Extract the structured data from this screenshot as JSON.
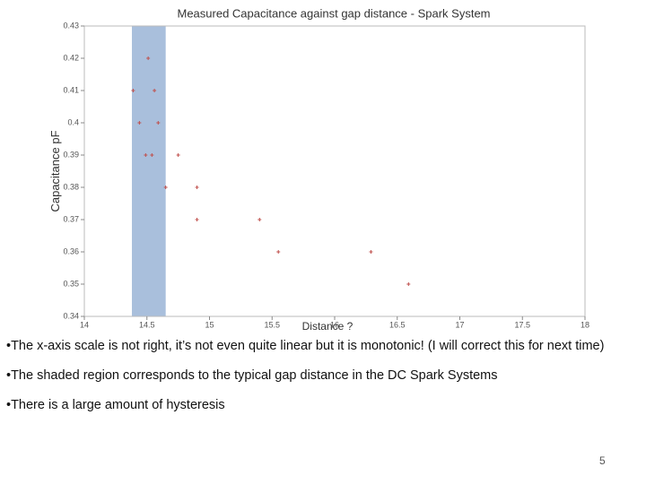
{
  "chart_data": {
    "type": "scatter",
    "title": "Measured Capacitance against gap distance - Spark System",
    "x_label": "Distance ?",
    "y_label": "Capacitance pF",
    "xlim": [
      14,
      18
    ],
    "xticks": [
      14,
      14.5,
      15,
      15.5,
      16,
      16.5,
      17,
      17.5,
      18
    ],
    "ylim": [
      0.34,
      0.43
    ],
    "yticks": [
      0.34,
      0.35,
      0.36,
      0.37,
      0.38,
      0.39,
      0.4,
      0.41,
      0.42,
      0.43
    ],
    "shaded_region": {
      "range": [
        14.38,
        14.65
      ],
      "color": "#a9bfdc"
    },
    "series": [
      {
        "color": "#c0504d",
        "x": [
          14.39,
          14.51,
          14.56,
          14.44,
          14.59,
          14.49,
          14.54,
          14.75,
          14.65,
          14.9,
          14.9,
          15.4,
          15.55,
          16.29,
          16.59
        ],
        "values": [
          0.41,
          0.42,
          0.41,
          0.4,
          0.4,
          0.39,
          0.39,
          0.39,
          0.38,
          0.38,
          0.37,
          0.37,
          0.36,
          0.36,
          0.35
        ]
      }
    ]
  },
  "bullets": [
    "•The x-axis scale is not right, it’s not even quite linear but it is monotonic! (I will correct this for next time)",
    "•The shaded region corresponds to the typical gap distance in the DC Spark Systems",
    "•There is a large amount of hysteresis"
  ],
  "page_number": "5"
}
